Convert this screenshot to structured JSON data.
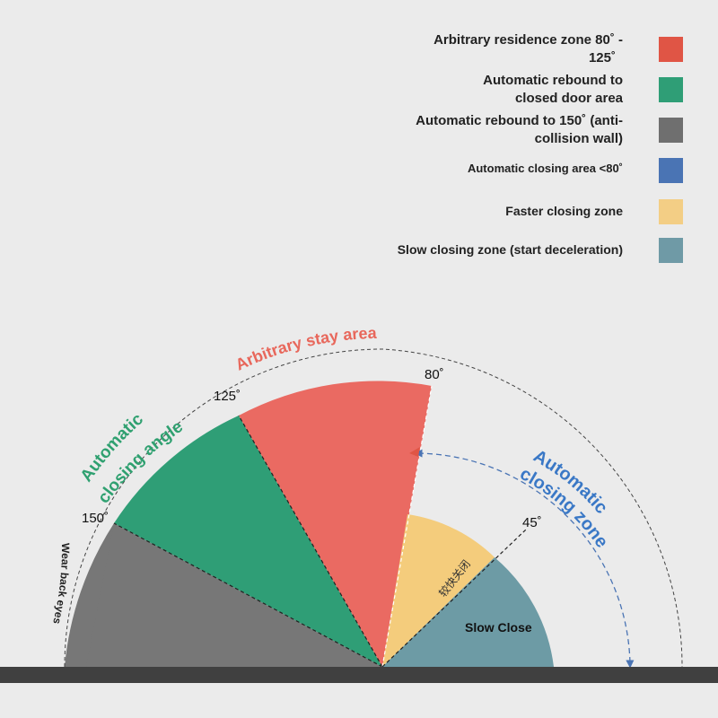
{
  "legend": [
    {
      "line1": "Arbitrary residence zone 80˚ -",
      "line2": "125˚",
      "color": "#e05545"
    },
    {
      "line1": "Automatic rebound to",
      "line2": "closed door area",
      "color": "#2f9e76"
    },
    {
      "line1": "Automatic rebound to 150˚  (anti-",
      "line2": "collision wall)",
      "color": "#6f6f6f"
    },
    {
      "line1": "Automatic closing area <80˚",
      "line2": "",
      "color": "#4a74b4"
    },
    {
      "line1": "Faster closing zone",
      "line2": "",
      "color": "#f3ce85"
    },
    {
      "line1": "Slow closing zone (start deceleration)",
      "line2": "",
      "color": "#6f9aa6"
    }
  ],
  "diagram": {
    "angle_labels": {
      "a150": "150˚",
      "a125": "125˚",
      "a80": "80˚",
      "a45": "45˚"
    },
    "arbitrary_stay_area": "Arbitrary stay area",
    "automatic_closing_angle": {
      "line1": "Automatic",
      "line2": "closing angle"
    },
    "automatic_closing_zone": {
      "line1": "Automatic",
      "line2": "closing zone"
    },
    "wear_back_eyes": "Wear back eyes",
    "faster_close_label": "较快关闭",
    "slow_close_label": "Slow Close",
    "colors": {
      "gray": "#777777",
      "green": "#2f9e76",
      "red": "#ea6a62",
      "yellow": "#f4cc7c",
      "teal": "#6d9ba5",
      "blue": "#3a78c6",
      "floor": "#404040"
    }
  }
}
